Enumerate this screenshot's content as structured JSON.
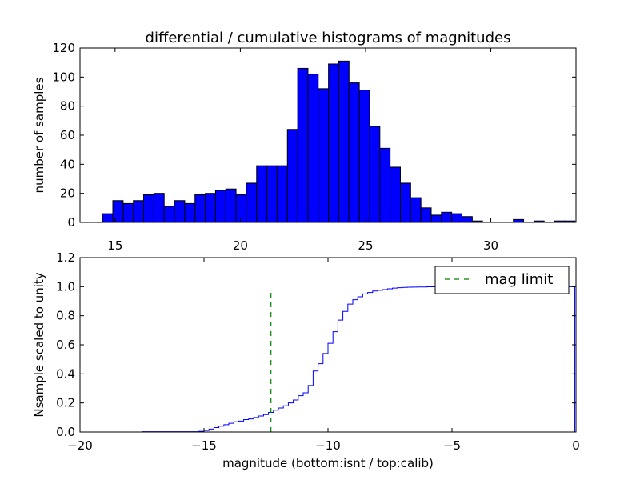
{
  "chart_data": [
    {
      "type": "bar",
      "title": "differential / cumulative histograms of magnitudes",
      "xlabel": "",
      "ylabel": "number of samples",
      "xlim": [
        13.6,
        33.4
      ],
      "ylim": [
        0,
        120
      ],
      "xticks": [
        15,
        20,
        25,
        30
      ],
      "yticks": [
        0,
        20,
        40,
        60,
        80,
        100,
        120
      ],
      "color": "#0000ff",
      "bin_width": 0.41,
      "bin_starts": [
        14.5,
        14.91,
        15.32,
        15.73,
        16.14,
        16.55,
        16.96,
        17.37,
        17.78,
        18.19,
        18.6,
        19.01,
        19.42,
        19.83,
        20.24,
        20.65,
        21.06,
        21.47,
        21.88,
        22.29,
        22.7,
        23.11,
        23.52,
        23.93,
        24.34,
        24.75,
        25.16,
        25.57,
        25.98,
        26.39,
        26.8,
        27.21,
        27.62,
        28.03,
        28.44,
        28.85,
        29.26,
        29.67,
        30.08,
        30.49,
        30.9,
        31.31,
        31.72,
        32.13,
        32.54,
        32.95
      ],
      "values": [
        6,
        15,
        13,
        15,
        19,
        20,
        11,
        15,
        13,
        19,
        20,
        22,
        23,
        19,
        27,
        39,
        39,
        39,
        64,
        106,
        102,
        92,
        109,
        111,
        96,
        91,
        66,
        51,
        38,
        27,
        17,
        10,
        5,
        7,
        6,
        4,
        1,
        0,
        0,
        0,
        2,
        0,
        1,
        0,
        1,
        1
      ]
    },
    {
      "type": "line",
      "style": "step",
      "title": "",
      "xlabel": "magnitude (bottom:isnt / top:calib)",
      "ylabel": "Nsample scaled to unity",
      "xlim": [
        -20,
        0
      ],
      "ylim": [
        0,
        1.2
      ],
      "xticks": [
        -20,
        -15,
        -10,
        -5,
        0
      ],
      "yticks": [
        0.0,
        0.2,
        0.4,
        0.6,
        0.8,
        1.0,
        1.2
      ],
      "series": [
        {
          "name": "cumulative",
          "color": "#0000ff",
          "x": [
            -20,
            -17.5,
            -15.2,
            -15.0,
            -14.8,
            -14.6,
            -14.4,
            -14.2,
            -14.0,
            -13.8,
            -13.6,
            -13.4,
            -13.2,
            -13.0,
            -12.8,
            -12.6,
            -12.4,
            -12.2,
            -12.0,
            -11.8,
            -11.6,
            -11.4,
            -11.2,
            -11.0,
            -10.8,
            -10.6,
            -10.4,
            -10.2,
            -10.0,
            -9.8,
            -9.6,
            -9.4,
            -9.2,
            -9.0,
            -8.8,
            -8.6,
            -8.4,
            -8.2,
            -8.0,
            -7.8,
            -7.6,
            -7.4,
            -7.2,
            -7.0,
            -6.8,
            -6.6,
            -6.4,
            -6.2,
            -6.0,
            -5.8,
            -5.5,
            -5.0,
            -4.0,
            -2.0,
            -0.05
          ],
          "y": [
            0.0,
            0.002,
            0.005,
            0.01,
            0.02,
            0.03,
            0.04,
            0.05,
            0.06,
            0.07,
            0.075,
            0.085,
            0.09,
            0.1,
            0.11,
            0.12,
            0.135,
            0.15,
            0.165,
            0.18,
            0.2,
            0.22,
            0.25,
            0.27,
            0.32,
            0.42,
            0.47,
            0.54,
            0.61,
            0.69,
            0.77,
            0.83,
            0.88,
            0.91,
            0.93,
            0.95,
            0.96,
            0.97,
            0.975,
            0.98,
            0.985,
            0.99,
            0.993,
            0.995,
            0.996,
            0.997,
            0.998,
            0.998,
            0.999,
            0.999,
            1.0,
            1.0,
            1.0,
            1.0,
            1.0
          ]
        },
        {
          "name": "mag limit",
          "color": "#008000",
          "dashed": true,
          "x": [
            -12.3,
            -12.3
          ],
          "y": [
            0.0,
            0.97
          ]
        }
      ],
      "legend": {
        "entries": [
          "mag limit"
        ],
        "placement": "top-right"
      }
    }
  ]
}
